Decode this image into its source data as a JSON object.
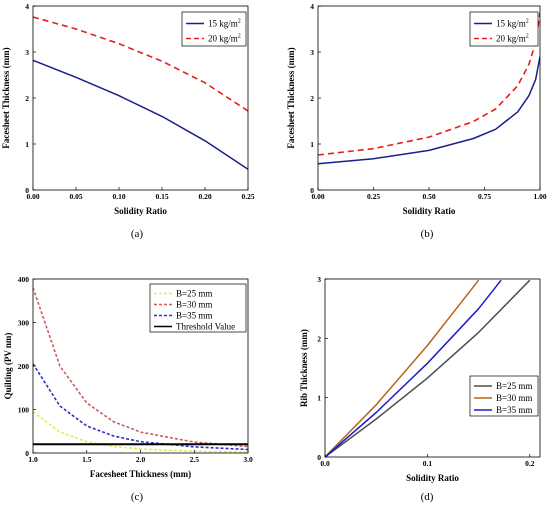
{
  "chart_data": [
    {
      "panel": "(a)",
      "type": "line",
      "xlabel": "Solidity Ratio",
      "ylabel": "Facesheet Thickness (mm)",
      "xlim": [
        0,
        0.25
      ],
      "ylim": [
        0,
        4
      ],
      "xticks": [
        "0.00",
        "0.05",
        "0.10",
        "0.15",
        "0.20",
        "0.25"
      ],
      "yticks": [
        "0",
        "1",
        "2",
        "3",
        "4"
      ],
      "legend_position": "top-right",
      "series": [
        {
          "name": "15 kg/m2",
          "name_base": "15 kg/m",
          "name_sup": "2",
          "color": "#1a1f8c",
          "dash": "solid",
          "x": [
            0,
            0.05,
            0.1,
            0.15,
            0.2,
            0.25
          ],
          "y": [
            2.82,
            2.45,
            2.05,
            1.6,
            1.07,
            0.45
          ]
        },
        {
          "name": "20 kg/m2",
          "name_base": "20 kg/m",
          "name_sup": "2",
          "color": "#e3211c",
          "dash": "dash",
          "x": [
            0,
            0.05,
            0.1,
            0.15,
            0.2,
            0.25
          ],
          "y": [
            3.76,
            3.5,
            3.18,
            2.8,
            2.33,
            1.72
          ]
        }
      ]
    },
    {
      "panel": "(b)",
      "type": "line",
      "xlabel": "Solidity Ratio",
      "ylabel": "Facesheet Thickness (mm)",
      "xlim": [
        0,
        1
      ],
      "ylim": [
        0,
        4
      ],
      "xticks": [
        "0.00",
        "0.25",
        "0.50",
        "0.75",
        "1.00"
      ],
      "yticks": [
        "0",
        "1",
        "2",
        "3",
        "4"
      ],
      "legend_position": "top-right",
      "series": [
        {
          "name": "15 kg/m2",
          "name_base": "15 kg/m",
          "name_sup": "2",
          "color": "#1a1f8c",
          "dash": "solid",
          "x": [
            0,
            0.25,
            0.5,
            0.7,
            0.8,
            0.9,
            0.95,
            0.98,
            1.0
          ],
          "y": [
            0.57,
            0.68,
            0.86,
            1.12,
            1.32,
            1.7,
            2.05,
            2.4,
            2.9
          ]
        },
        {
          "name": "20 kg/m2",
          "name_base": "20 kg/m",
          "name_sup": "2",
          "color": "#e3211c",
          "dash": "dash",
          "x": [
            0,
            0.25,
            0.5,
            0.7,
            0.8,
            0.9,
            0.95,
            0.98,
            1.0
          ],
          "y": [
            0.76,
            0.9,
            1.15,
            1.49,
            1.76,
            2.27,
            2.73,
            3.2,
            3.85
          ]
        }
      ]
    },
    {
      "panel": "(c)",
      "type": "line",
      "xlabel": "Facesheet Thickness (mm)",
      "ylabel": "Quilting (PV nm)",
      "xlim": [
        1,
        3
      ],
      "ylim": [
        0,
        400
      ],
      "xticks": [
        "1.0",
        "1.5",
        "2.0",
        "2.5",
        "3.0"
      ],
      "yticks": [
        "0",
        "100",
        "200",
        "300",
        "400"
      ],
      "legend_position": "top-right",
      "series": [
        {
          "name": "B=25 mm",
          "color": "#e8e85a",
          "dash": "dash",
          "x": [
            1.0,
            1.25,
            1.5,
            1.75,
            2.0,
            2.5,
            3.0
          ],
          "y": [
            95,
            48,
            26,
            15,
            9,
            4,
            2
          ]
        },
        {
          "name": "B=30 mm",
          "color": "#cd5c5c",
          "dash": "dash",
          "x": [
            1.0,
            1.25,
            1.5,
            1.75,
            2.0,
            2.5,
            3.0
          ],
          "y": [
            380,
            200,
            115,
            72,
            48,
            25,
            15
          ]
        },
        {
          "name": "B=35 mm",
          "color": "#2f2fcc",
          "dash": "dash",
          "x": [
            1.0,
            1.25,
            1.5,
            1.75,
            2.0,
            2.5,
            3.0
          ],
          "y": [
            205,
            108,
            62,
            39,
            26,
            14,
            8
          ]
        },
        {
          "name": "Threshold Value",
          "color": "#000000",
          "dash": "solid",
          "x": [
            1.0,
            3.0
          ],
          "y": [
            20,
            20
          ]
        }
      ]
    },
    {
      "panel": "(d)",
      "type": "line",
      "xlabel": "Solidity Ratio",
      "ylabel": "Rib Thickness (mm)",
      "xlim": [
        0,
        0.21
      ],
      "ylim": [
        0,
        3
      ],
      "xticks": [
        "0.0",
        "0.1",
        "0.2"
      ],
      "yticks": [
        "0",
        "1",
        "2",
        "3"
      ],
      "legend_position": "bottom-right",
      "series": [
        {
          "name": "B=25 mm",
          "color": "#4d4d4d",
          "dash": "solid",
          "x": [
            0,
            0.05,
            0.1,
            0.15,
            0.2
          ],
          "y": [
            0,
            0.64,
            1.33,
            2.1,
            2.98
          ]
        },
        {
          "name": "B=30 mm",
          "color": "#b5651d",
          "dash": "solid",
          "x": [
            0,
            0.05,
            0.1,
            0.15
          ],
          "y": [
            0,
            0.88,
            1.88,
            2.98
          ]
        },
        {
          "name": "B=35 mm",
          "color": "#1a1fcc",
          "dash": "solid",
          "x": [
            0,
            0.05,
            0.1,
            0.15,
            0.172
          ],
          "y": [
            0,
            0.75,
            1.58,
            2.5,
            2.98
          ]
        }
      ]
    }
  ]
}
